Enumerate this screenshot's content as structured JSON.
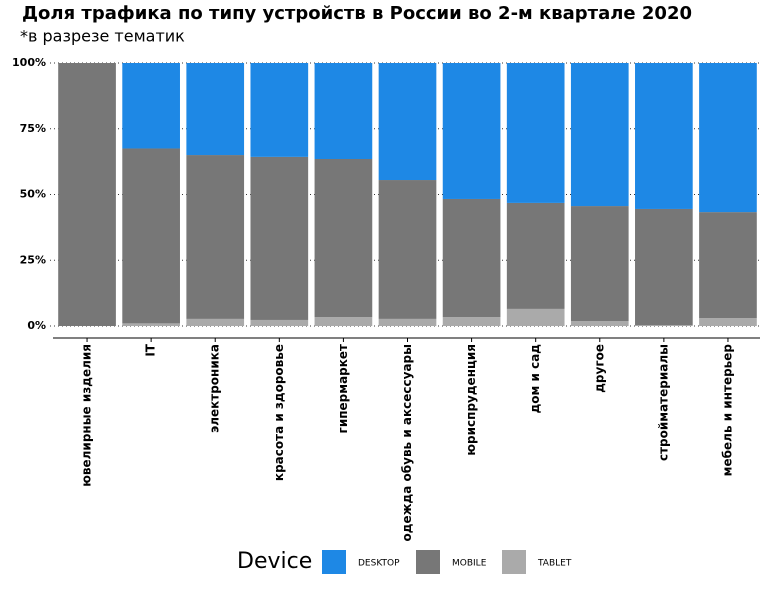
{
  "chart_data": {
    "type": "stacked_bar_percent",
    "title": "Доля трафика по типу устройств в России во 2-м квартале 2020",
    "subtitle": "*в разрезе тематик",
    "categories": [
      "ювелирные изделия",
      "IT",
      "электроника",
      "красота и здоровье",
      "гипермаркет",
      "одежда обувь и аксессуары",
      "юриспруденция",
      "дом и сад",
      "другое",
      "стройматериалы",
      "мебель и интерьер"
    ],
    "legend_title": "Device",
    "series": [
      {
        "name": "DESKTOP",
        "color": "#1e88e5",
        "values": [
          0,
          32.5,
          35,
          35.7,
          36.5,
          44.5,
          51.7,
          53.2,
          54.4,
          55.5,
          56.7
        ]
      },
      {
        "name": "MOBILE",
        "color": "#777777",
        "values": [
          100,
          66.5,
          62.3,
          62,
          60.1,
          52.8,
          44.9,
          40.3,
          43.7,
          44.2,
          40.3
        ]
      },
      {
        "name": "TABLET",
        "color": "#aaaaaa",
        "values": [
          0,
          1,
          2.7,
          2.3,
          3.4,
          2.7,
          3.4,
          6.5,
          1.9,
          0.3,
          3
        ]
      }
    ],
    "ylim": [
      0,
      100
    ],
    "yticks": [
      {
        "value": 0,
        "label": "0%"
      },
      {
        "value": 25,
        "label": "25%"
      },
      {
        "value": 50,
        "label": "50%"
      },
      {
        "value": 75,
        "label": "75%"
      },
      {
        "value": 100,
        "label": "100%"
      }
    ],
    "grid": true
  }
}
